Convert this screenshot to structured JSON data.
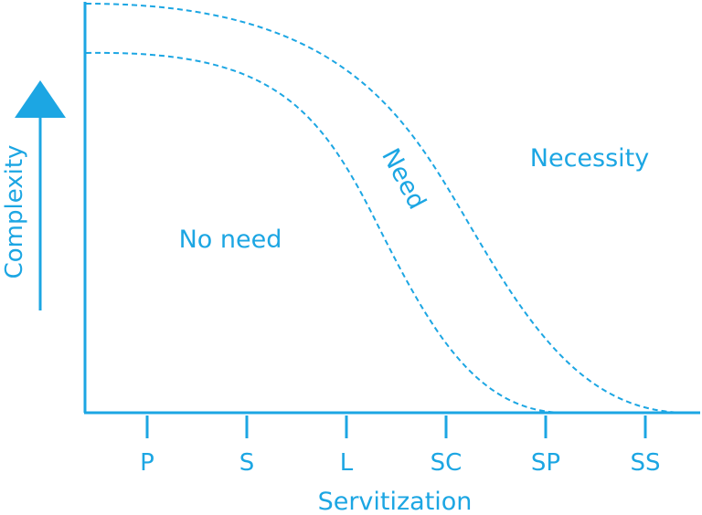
{
  "colors": {
    "accent": "#1ca6e3",
    "background": "#ffffff"
  },
  "axes": {
    "y_label": "Complexity",
    "x_label": "Servitization"
  },
  "x_ticks": [
    "P",
    "S",
    "L",
    "SC",
    "SP",
    "SS"
  ],
  "regions": {
    "no_need": "No need",
    "need": "Need",
    "necessity": "Necessity"
  },
  "icons": {
    "y_arrow": "arrow-up-icon"
  }
}
